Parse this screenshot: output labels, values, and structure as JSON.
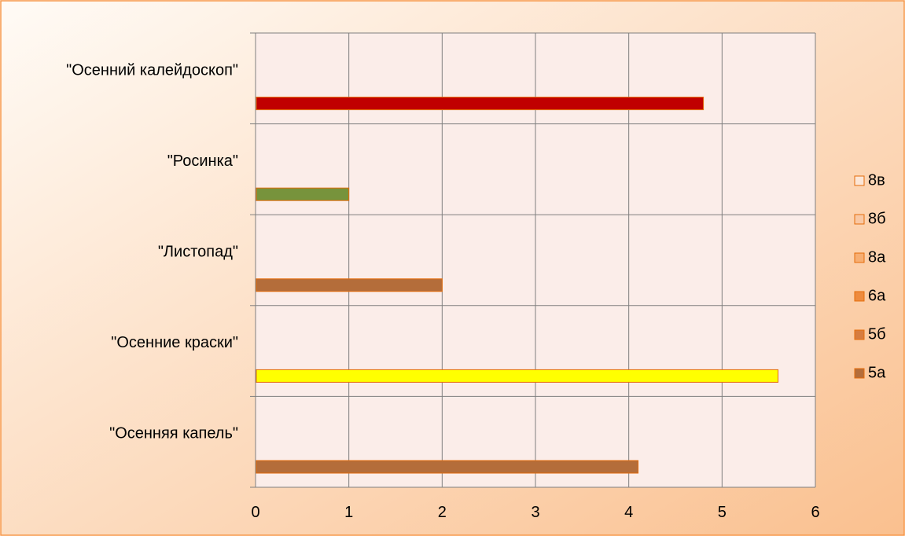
{
  "chart_data": {
    "type": "bar",
    "orientation": "horizontal",
    "categories": [
      "\"Осенний калейдоскоп\"",
      "\"Росинка\"",
      "\"Листопад\"",
      "\"Осенние краски\"",
      "\"Осенняя капель\""
    ],
    "bars": [
      {
        "category": "\"Осенний калейдоскоп\"",
        "value": 4.8,
        "color": "#C00000"
      },
      {
        "category": "\"Росинка\"",
        "value": 1.0,
        "color": "#77933C"
      },
      {
        "category": "\"Листопад\"",
        "value": 2.0,
        "color": "#B46D3A"
      },
      {
        "category": "\"Осенние краски\"",
        "value": 5.6,
        "color": "#FFFF00"
      },
      {
        "category": "\"Осенняя капель\"",
        "value": 4.1,
        "color": "#B46D3A"
      }
    ],
    "legend": [
      {
        "label": "8в",
        "color": "#FCE6D6"
      },
      {
        "label": "8б",
        "color": "#F9C8A4"
      },
      {
        "label": "8а",
        "color": "#F7AE72"
      },
      {
        "label": "6а",
        "color": "#EE8B3E"
      },
      {
        "label": "5б",
        "color": "#D67C3F"
      },
      {
        "label": "5а",
        "color": "#B46D3A"
      }
    ],
    "xlim": [
      0,
      6
    ],
    "xticks": [
      "0",
      "1",
      "2",
      "3",
      "4",
      "5",
      "6"
    ],
    "grid": true,
    "legend_position": "right",
    "colors": {
      "plot_background": "#FBEDE9",
      "outer_gradient_start": "#FFFBF6",
      "outer_gradient_end": "#FAC08F",
      "border": "#F79646",
      "bar_outline": "#E46C0A",
      "grid": "#7F7F7F"
    }
  }
}
